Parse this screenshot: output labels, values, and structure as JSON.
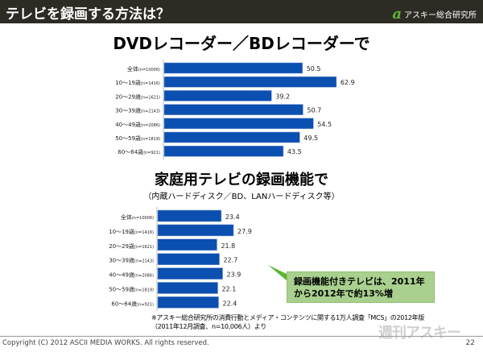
{
  "header": {
    "title": "テレビを録画する方法は？",
    "logo_text": "アスキー総合研究所",
    "logo_mark": "a"
  },
  "chart_data": [
    {
      "type": "bar",
      "orientation": "horizontal",
      "title": "DVDレコーダー／BDレコーダーで",
      "categories": [
        "全体",
        "10～19歳",
        "20～29歳",
        "30～39歳",
        "40～49歳",
        "50～59歳",
        "60～64歳"
      ],
      "category_n": [
        "(n=10006)",
        "(n=1416)",
        "(n=1621)",
        "(n=2143)",
        "(n=2086)",
        "(n=1819)",
        "(n=921)"
      ],
      "values": [
        50.5,
        62.9,
        39.2,
        50.7,
        54.5,
        49.5,
        43.5
      ],
      "color": "#0b4fb0"
    },
    {
      "type": "bar",
      "orientation": "horizontal",
      "title": "家庭用テレビの録画機能で",
      "subtitle": "（内蔵ハードディスク／BD、LANハードディスク等）",
      "categories": [
        "全体",
        "10～19歳",
        "20～29歳",
        "30～39歳",
        "40～49歳",
        "50～59歳",
        "60～64歳"
      ],
      "category_n": [
        "(n=10006)",
        "(n=1416)",
        "(n=1621)",
        "(n=2143)",
        "(n=2086)",
        "(n=1819)",
        "(n=921)"
      ],
      "values": [
        23.4,
        27.9,
        21.8,
        22.7,
        23.9,
        22.1,
        22.4
      ],
      "color": "#0b4fb0"
    }
  ],
  "callout": {
    "line1": "録画機能付きテレビは、2011年",
    "line2": "から2012年で約13%増"
  },
  "note": {
    "line1": "※アスキー総合研究所の消費行動とメディア・コンテンツに関する1万人調査「MCS」の2012年版",
    "line2": "（2011年12月調査、n=10,006人）より"
  },
  "footer": {
    "copyright": "Copyright (C) 2012 ASCII MEDIA WORKS. All rights reserved.",
    "page": "22",
    "watermark": "週刊アスキー"
  }
}
